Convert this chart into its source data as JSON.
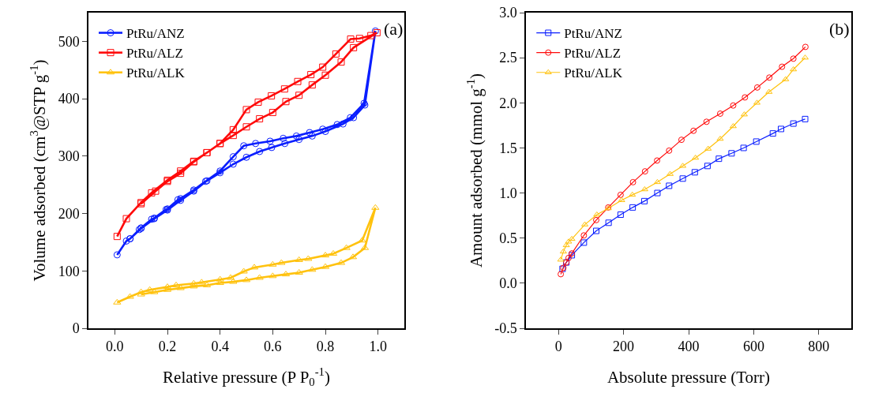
{
  "chart_data": [
    {
      "type": "line",
      "xlabel": "Relative pressure (P P$_{0}$$^{-1}$)",
      "ylabel": "Volume adsorbed (cm$^{3}$@STP g$^{-1}$)",
      "annotations": [
        "(a)"
      ],
      "xlim": [
        -0.1,
        1.1
      ],
      "xticks": [
        {
          "value": 0,
          "label": "0.0"
        },
        0.2,
        0.4,
        0.6,
        0.8,
        {
          "value": 1,
          "label": "1.0"
        }
      ],
      "ylim": [
        0,
        550
      ],
      "yticks": [
        0,
        100,
        200,
        300,
        400,
        500
      ],
      "grid": false,
      "legend": "top left",
      "line_style": "solid",
      "series": [
        {
          "name": "PtRu/ANZ",
          "color": "#0a1eff",
          "marker": "circle",
          "x": [
            0.009,
            0.044,
            0.058,
            0.093,
            0.1,
            0.14,
            0.15,
            0.195,
            0.2,
            0.24,
            0.25,
            0.3,
            0.345,
            0.4,
            0.45,
            0.49,
            0.535,
            0.59,
            0.64,
            0.69,
            0.74,
            0.79,
            0.845,
            0.895,
            0.947,
            0.99,
            0.95,
            0.907,
            0.867,
            0.8,
            0.75,
            0.7,
            0.646,
            0.596,
            0.55,
            0.5,
            0.45,
            0.4,
            0.35,
            0.3,
            0.25,
            0.2,
            0.15,
            0.1,
            0.058
          ],
          "values": [
            128,
            152,
            156,
            172,
            175,
            190,
            192,
            207,
            208,
            224,
            226,
            241,
            256,
            274,
            299,
            318,
            322,
            326,
            331,
            335,
            341,
            347,
            355,
            367,
            392,
            518,
            389,
            367,
            356,
            343,
            335,
            329,
            322,
            315,
            308,
            298,
            286,
            271,
            257,
            239,
            223,
            206,
            191,
            174,
            156
          ]
        },
        {
          "name": "PtRu/ALZ",
          "color": "#ff0a0a",
          "marker": "square",
          "x": [
            0.009,
            0.044,
            0.1,
            0.14,
            0.2,
            0.25,
            0.3,
            0.35,
            0.4,
            0.45,
            0.5,
            0.545,
            0.595,
            0.645,
            0.695,
            0.745,
            0.79,
            0.84,
            0.896,
            0.93,
            0.973,
            0.996,
            0.907,
            0.86,
            0.8,
            0.75,
            0.7,
            0.65,
            0.6,
            0.55,
            0.5,
            0.45,
            0.4,
            0.35,
            0.3,
            0.25,
            0.2,
            0.155,
            0.1
          ],
          "values": [
            160,
            191,
            219,
            236,
            258,
            274,
            291,
            306,
            322,
            346,
            381,
            394,
            405,
            417,
            430,
            442,
            455,
            478,
            504,
            505,
            510,
            515,
            489,
            464,
            441,
            424,
            406,
            395,
            376,
            365,
            351,
            336,
            322,
            306,
            290,
            270,
            256,
            239,
            217
          ]
        },
        {
          "name": "PtRu/ALK",
          "color": "#ffc20e",
          "marker": "triangle",
          "x": [
            0.009,
            0.058,
            0.1,
            0.133,
            0.2,
            0.233,
            0.3,
            0.33,
            0.4,
            0.44,
            0.49,
            0.53,
            0.6,
            0.633,
            0.7,
            0.735,
            0.8,
            0.83,
            0.88,
            0.94,
            0.99,
            0.95,
            0.905,
            0.86,
            0.8,
            0.75,
            0.7,
            0.65,
            0.6,
            0.55,
            0.5,
            0.45,
            0.4,
            0.35,
            0.3,
            0.25,
            0.2,
            0.15,
            0.1
          ],
          "values": [
            45,
            55,
            63,
            67,
            72,
            75,
            78,
            80,
            85,
            88,
            99,
            106,
            111,
            114,
            119,
            121,
            127,
            130,
            140,
            153,
            210,
            140,
            124,
            114,
            107,
            102,
            97,
            94,
            91,
            88,
            84,
            81,
            79,
            75,
            73,
            70,
            67,
            63,
            59
          ]
        }
      ]
    },
    {
      "type": "line",
      "xlabel": "Absolute pressure (Torr)",
      "ylabel": "Amount adsorbed (mmol g$^{-1}$)",
      "annotations": [
        "(b)"
      ],
      "xlim": [
        -100,
        900
      ],
      "xticks": [
        0,
        200,
        400,
        600,
        800
      ],
      "ylim": [
        -0.5,
        3.0
      ],
      "yticks": [
        {
          "value": -0.5,
          "label": "-0.5"
        },
        {
          "value": 0,
          "label": "0.0"
        },
        0.5,
        {
          "value": 1,
          "label": "1.0"
        },
        1.5,
        {
          "value": 2,
          "label": "2.0"
        },
        2.5,
        {
          "value": 3,
          "label": "3.0"
        }
      ],
      "grid": false,
      "legend": "top left",
      "line_style": "solid",
      "series": [
        {
          "name": "PtRu/ANZ",
          "color": "#0a1eff",
          "marker": "square",
          "x": [
            12.6,
            24,
            41,
            78,
            116,
            154,
            191,
            228,
            264,
            304,
            340,
            382,
            419,
            458,
            493,
            532,
            569,
            608,
            659,
            684,
            722,
            758
          ],
          "values": [
            0.16,
            0.23,
            0.31,
            0.45,
            0.58,
            0.67,
            0.76,
            0.84,
            0.91,
            1.0,
            1.08,
            1.16,
            1.23,
            1.3,
            1.38,
            1.44,
            1.5,
            1.57,
            1.66,
            1.71,
            1.77,
            1.82
          ]
        },
        {
          "name": "PtRu/ALZ",
          "color": "#ff0a0a",
          "marker": "circle",
          "x": [
            7,
            15,
            24,
            31,
            41,
            78,
            116,
            153,
            191,
            229,
            266,
            303,
            340,
            378,
            415,
            455,
            497,
            537,
            573,
            611,
            648,
            687,
            722,
            759
          ],
          "values": [
            0.1,
            0.17,
            0.23,
            0.28,
            0.33,
            0.53,
            0.7,
            0.84,
            0.98,
            1.12,
            1.24,
            1.36,
            1.47,
            1.59,
            1.69,
            1.79,
            1.88,
            1.97,
            2.06,
            2.17,
            2.28,
            2.4,
            2.49,
            2.62
          ]
        },
        {
          "name": "PtRu/ALK",
          "color": "#ffc20e",
          "marker": "triangle",
          "x": [
            7,
            15,
            24,
            31,
            41,
            81,
            118,
            153,
            194,
            227,
            265,
            304,
            343,
            382,
            421,
            460,
            497,
            537,
            571,
            610,
            647,
            698,
            722,
            758
          ],
          "values": [
            0.26,
            0.35,
            0.42,
            0.46,
            0.49,
            0.65,
            0.76,
            0.83,
            0.92,
            0.98,
            1.04,
            1.12,
            1.21,
            1.3,
            1.39,
            1.49,
            1.6,
            1.74,
            1.87,
            2.0,
            2.12,
            2.26,
            2.37,
            2.5
          ]
        }
      ]
    }
  ]
}
